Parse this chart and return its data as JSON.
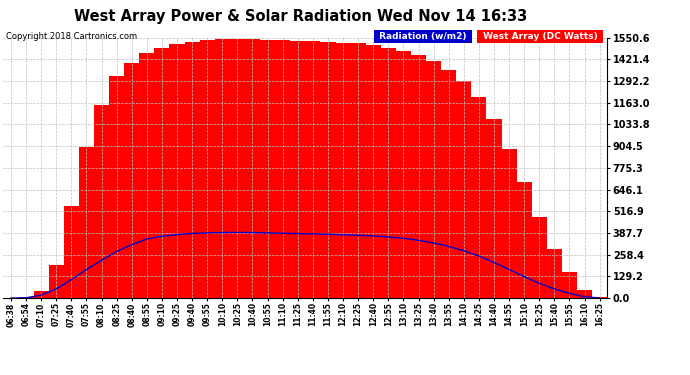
{
  "title": "West Array Power & Solar Radiation Wed Nov 14 16:33",
  "copyright": "Copyright 2018 Cartronics.com",
  "yticks": [
    0.0,
    129.2,
    258.4,
    387.7,
    516.9,
    646.1,
    775.3,
    904.5,
    1033.8,
    1163.0,
    1292.2,
    1421.4,
    1550.6
  ],
  "ymax": 1550.6,
  "ymin": 0.0,
  "background_color": "#ffffff",
  "plot_bg_color": "#ffffff",
  "grid_color": "#c0c0c0",
  "red_color": "#ff0000",
  "blue_color": "#0000cc",
  "legend_radiation_bg": "#0000cc",
  "legend_west_bg": "#ff0000",
  "legend_radiation_text": "Radiation (w/m2)",
  "legend_west_text": "West Array (DC Watts)",
  "time_labels": [
    "06:38",
    "06:54",
    "07:10",
    "07:25",
    "07:40",
    "07:55",
    "08:10",
    "08:25",
    "08:40",
    "08:55",
    "09:10",
    "09:25",
    "09:40",
    "09:55",
    "10:10",
    "10:25",
    "10:40",
    "10:55",
    "11:10",
    "11:25",
    "11:40",
    "11:55",
    "12:10",
    "12:25",
    "12:40",
    "12:55",
    "13:10",
    "13:25",
    "13:40",
    "13:55",
    "14:10",
    "14:25",
    "14:40",
    "14:55",
    "15:10",
    "15:25",
    "15:40",
    "15:55",
    "16:10",
    "16:25"
  ],
  "radiation_values": [
    0,
    2,
    18,
    55,
    110,
    170,
    225,
    278,
    318,
    352,
    368,
    378,
    385,
    388,
    390,
    391,
    390,
    388,
    386,
    384,
    382,
    380,
    377,
    374,
    370,
    364,
    356,
    344,
    328,
    308,
    282,
    250,
    212,
    170,
    128,
    88,
    55,
    28,
    8,
    1
  ],
  "west_array_values": [
    2,
    8,
    45,
    200,
    550,
    900,
    1150,
    1320,
    1400,
    1460,
    1490,
    1510,
    1525,
    1535,
    1540,
    1542,
    1540,
    1538,
    1535,
    1532,
    1528,
    1525,
    1520,
    1515,
    1505,
    1490,
    1470,
    1445,
    1410,
    1360,
    1290,
    1195,
    1065,
    890,
    690,
    480,
    295,
    155,
    48,
    5
  ]
}
